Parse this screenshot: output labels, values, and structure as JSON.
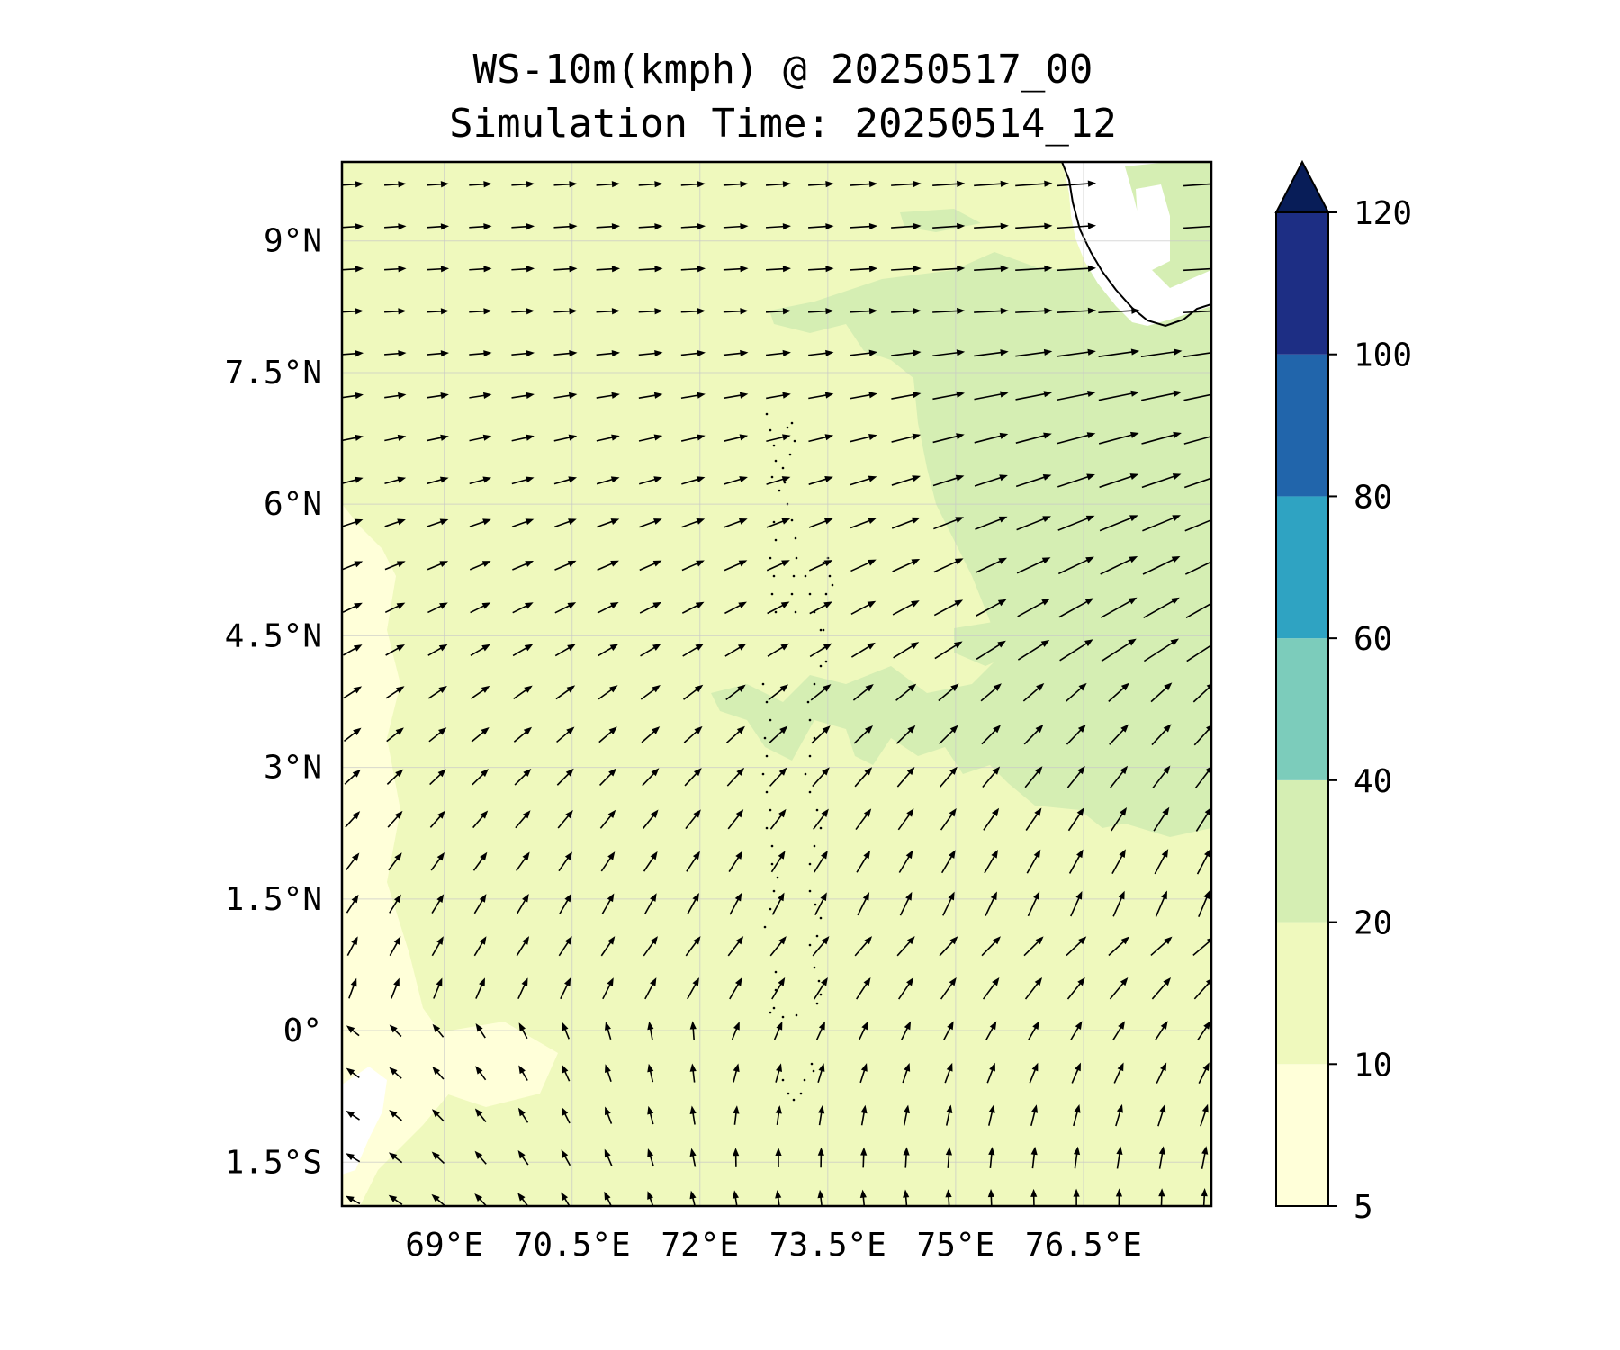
{
  "title": "WS-10m(kmph) @ 20250517_00",
  "subtitle": "Simulation Time: 20250514_12",
  "map": {
    "lon_range": [
      67.8,
      78.0
    ],
    "lat_range": [
      -2.0,
      9.9
    ],
    "lat_ticks": [
      {
        "value": 9.0,
        "label": "9°N"
      },
      {
        "value": 7.5,
        "label": "7.5°N"
      },
      {
        "value": 6.0,
        "label": "6°N"
      },
      {
        "value": 4.5,
        "label": "4.5°N"
      },
      {
        "value": 3.0,
        "label": "3°N"
      },
      {
        "value": 1.5,
        "label": "1.5°N"
      },
      {
        "value": 0.0,
        "label": "0°"
      },
      {
        "value": -1.5,
        "label": "1.5°S"
      }
    ],
    "lon_ticks": [
      {
        "value": 69.0,
        "label": "69°E"
      },
      {
        "value": 70.5,
        "label": "70.5°E"
      },
      {
        "value": 72.0,
        "label": "72°E"
      },
      {
        "value": 73.5,
        "label": "73.5°E"
      },
      {
        "value": 75.0,
        "label": "75°E"
      },
      {
        "value": 76.5,
        "label": "76.5°E"
      }
    ]
  },
  "colorbar": {
    "levels": [
      "5",
      "10",
      "20",
      "40",
      "60",
      "80",
      "100",
      "120"
    ],
    "colors": [
      "#ffffd9",
      "#eff9bd",
      "#d5eeb3",
      "#7cccbb",
      "#2fa3c2",
      "#2165ab",
      "#1d2e84"
    ],
    "extend_color": "#081d58",
    "extend": "max"
  },
  "colors": {
    "background_field": "#eff9bd",
    "calm_field": "#ffffd9",
    "strong_field": "#d5eeb3",
    "land": "#ffffff",
    "arrow": "#000000"
  }
}
